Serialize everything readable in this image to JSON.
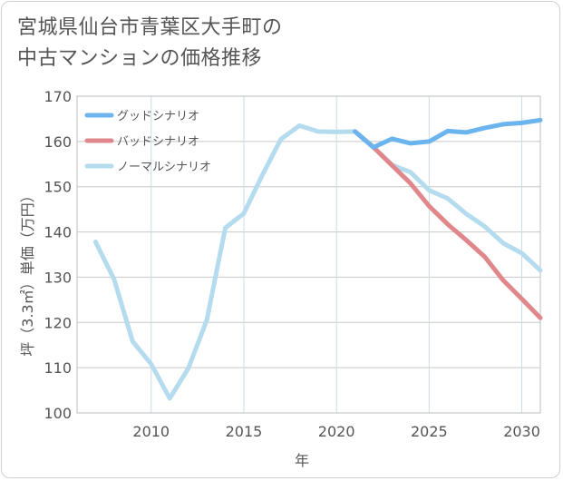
{
  "title_lines": [
    "宮城県仙台市青葉区大手町の",
    "中古マンションの価格推移"
  ],
  "chart_data": {
    "type": "line",
    "xlabel": "年",
    "ylabel": "坪（3.3㎡）単価（万円）",
    "xlim": [
      2006,
      2031
    ],
    "ylim": [
      100,
      170
    ],
    "xticks": [
      2010,
      2015,
      2020,
      2025,
      2030
    ],
    "yticks": [
      100,
      110,
      120,
      130,
      140,
      150,
      160,
      170
    ],
    "grid": true,
    "legend_position": "top-left",
    "series": [
      {
        "name": "グッドシナリオ",
        "color": "#6cb4ee",
        "x": [
          2021,
          2022,
          2023,
          2024,
          2025,
          2026,
          2027,
          2028,
          2029,
          2030,
          2031
        ],
        "values": [
          162.2,
          158.7,
          160.6,
          159.6,
          160.0,
          162.3,
          162.0,
          163.0,
          163.8,
          164.1,
          164.7
        ]
      },
      {
        "name": "バッドシナリオ",
        "color": "#e0878c",
        "x": [
          2021,
          2022,
          2023,
          2024,
          2025,
          2026,
          2027,
          2028,
          2029,
          2030,
          2031
        ],
        "values": [
          162.2,
          158.7,
          154.7,
          150.7,
          145.7,
          141.7,
          138.2,
          134.5,
          129.3,
          125.2,
          121.0
        ]
      },
      {
        "name": "ノーマルシナリオ",
        "color": "#b5dcee",
        "x": [
          2007,
          2008,
          2009,
          2010,
          2011,
          2012,
          2013,
          2014,
          2015,
          2016,
          2017,
          2018,
          2019,
          2020,
          2021,
          2022,
          2023,
          2024,
          2025,
          2026,
          2027,
          2028,
          2029,
          2030,
          2031
        ],
        "values": [
          137.8,
          129.5,
          115.8,
          110.8,
          103.2,
          109.8,
          120.5,
          140.9,
          144.1,
          152.6,
          160.5,
          163.5,
          162.2,
          162.1,
          162.2,
          158.7,
          154.8,
          153.2,
          149.2,
          147.4,
          144.0,
          141.2,
          137.5,
          135.3,
          131.5
        ]
      }
    ]
  }
}
